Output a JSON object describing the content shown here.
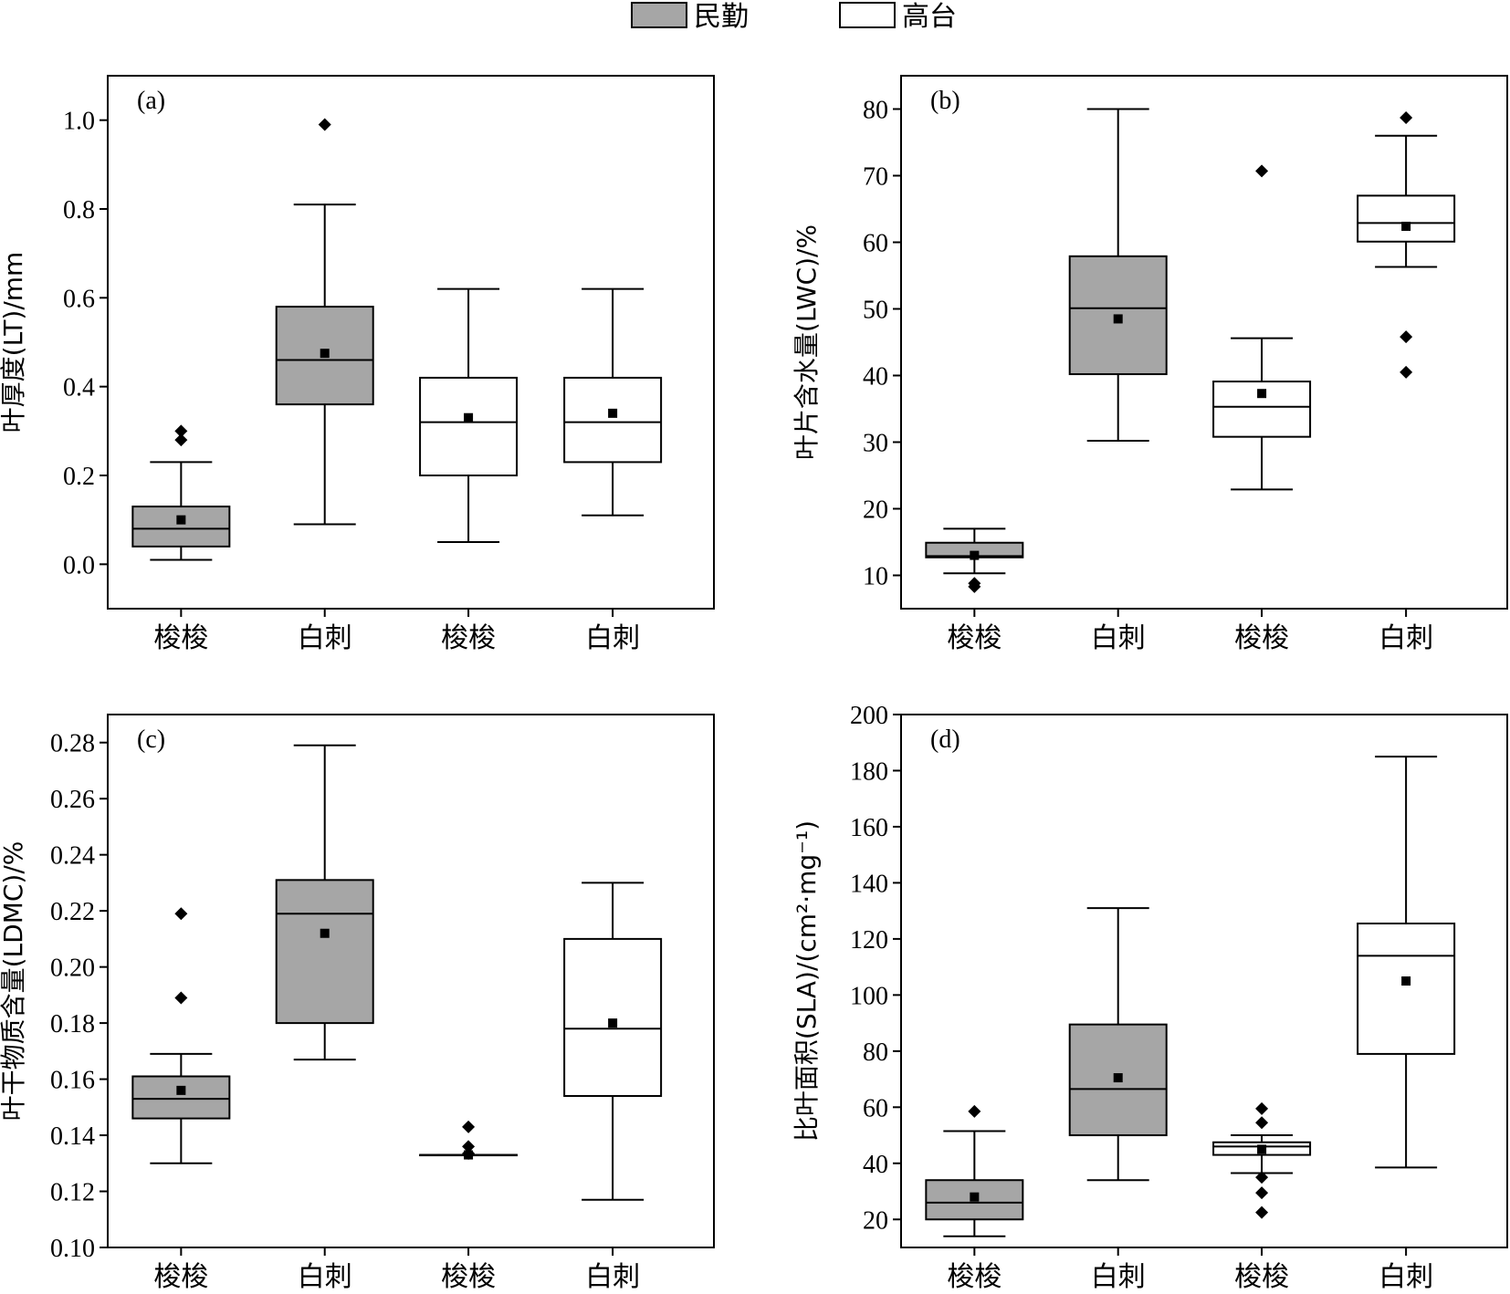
{
  "legend": [
    {
      "label": "民勤",
      "fill": "#a6a6a6"
    },
    {
      "label": "高台",
      "fill": "#ffffff"
    }
  ],
  "colors": {
    "minqin": "#a6a6a6",
    "gaotai": "#ffffff",
    "stroke": "#000000"
  },
  "chart_data": [
    {
      "type": "box",
      "tag": "(a)",
      "ylabel": "叶厚度(LT)/mm",
      "ylim": [
        -0.1,
        1.1
      ],
      "yticks": [
        0.0,
        0.2,
        0.4,
        0.6,
        0.8,
        1.0
      ],
      "tick_labels": [
        "0.0",
        "0.2",
        "0.4",
        "0.6",
        "0.8",
        "1.0"
      ],
      "categories": [
        "梭梭",
        "白刺",
        "梭梭",
        "白刺"
      ],
      "boxes": [
        {
          "site": "民勤",
          "whisker_low": 0.01,
          "q1": 0.04,
          "median": 0.08,
          "q3": 0.13,
          "whisker_high": 0.23,
          "mean": 0.1,
          "outliers": [
            0.28,
            0.3
          ]
        },
        {
          "site": "民勤",
          "whisker_low": 0.09,
          "q1": 0.36,
          "median": 0.46,
          "q3": 0.58,
          "whisker_high": 0.81,
          "mean": 0.475,
          "outliers": [
            0.99
          ]
        },
        {
          "site": "高台",
          "whisker_low": 0.05,
          "q1": 0.2,
          "median": 0.32,
          "q3": 0.42,
          "whisker_high": 0.62,
          "mean": 0.33,
          "outliers": []
        },
        {
          "site": "高台",
          "whisker_low": 0.11,
          "q1": 0.23,
          "median": 0.32,
          "q3": 0.42,
          "whisker_high": 0.62,
          "mean": 0.34,
          "outliers": []
        }
      ]
    },
    {
      "type": "box",
      "tag": "(b)",
      "ylabel": "叶片含水量(LWC)/%",
      "ylim": [
        5,
        85
      ],
      "yticks": [
        10,
        20,
        30,
        40,
        50,
        60,
        70,
        80
      ],
      "tick_labels": [
        "10",
        "20",
        "30",
        "40",
        "50",
        "60",
        "70",
        "80"
      ],
      "categories": [
        "梭梭",
        "白刺",
        "梭梭",
        "白刺"
      ],
      "boxes": [
        {
          "site": "民勤",
          "whisker_low": 10.3,
          "q1": 12.7,
          "median": 12.9,
          "q3": 14.9,
          "whisker_high": 17.0,
          "mean": 13.0,
          "outliers": [
            8.3,
            8.8
          ]
        },
        {
          "site": "民勤",
          "whisker_low": 30.2,
          "q1": 40.2,
          "median": 50.1,
          "q3": 57.9,
          "whisker_high": 80.0,
          "mean": 48.5,
          "outliers": []
        },
        {
          "site": "高台",
          "whisker_low": 22.9,
          "q1": 30.8,
          "median": 35.3,
          "q3": 39.1,
          "whisker_high": 45.6,
          "mean": 37.3,
          "outliers": [
            70.7
          ]
        },
        {
          "site": "高台",
          "whisker_low": 56.3,
          "q1": 60.1,
          "median": 62.9,
          "q3": 67.0,
          "whisker_high": 76.0,
          "mean": 62.4,
          "outliers": [
            40.5,
            45.8,
            78.7
          ]
        }
      ]
    },
    {
      "type": "box",
      "tag": "(c)",
      "ylabel": "叶干物质含量(LDMC)/%",
      "ylim": [
        0.1,
        0.29
      ],
      "yticks": [
        0.1,
        0.12,
        0.14,
        0.16,
        0.18,
        0.2,
        0.22,
        0.24,
        0.26,
        0.28
      ],
      "tick_labels": [
        "0.10",
        "0.12",
        "0.14",
        "0.16",
        "0.18",
        "0.20",
        "0.22",
        "0.24",
        "0.26",
        "0.28"
      ],
      "categories": [
        "梭梭",
        "白刺",
        "梭梭",
        "白刺"
      ],
      "boxes": [
        {
          "site": "民勤",
          "whisker_low": 0.13,
          "q1": 0.146,
          "median": 0.153,
          "q3": 0.161,
          "whisker_high": 0.169,
          "mean": 0.156,
          "outliers": [
            0.189,
            0.219
          ]
        },
        {
          "site": "民勤",
          "whisker_low": 0.167,
          "q1": 0.18,
          "median": 0.219,
          "q3": 0.231,
          "whisker_high": 0.279,
          "mean": 0.212,
          "outliers": []
        },
        {
          "site": "高台",
          "whisker_low": 0.133,
          "q1": 0.133,
          "median": 0.133,
          "q3": 0.133,
          "whisker_high": 0.133,
          "mean": 0.133,
          "outliers": [
            0.1335,
            0.136,
            0.143
          ]
        },
        {
          "site": "高台",
          "whisker_low": 0.117,
          "q1": 0.154,
          "median": 0.178,
          "q3": 0.21,
          "whisker_high": 0.23,
          "mean": 0.18,
          "outliers": []
        }
      ]
    },
    {
      "type": "box",
      "tag": "(d)",
      "ylabel": "比叶面积(SLA)/(cm²·mg⁻¹)",
      "ylim": [
        10,
        200
      ],
      "yticks": [
        20,
        40,
        60,
        80,
        100,
        120,
        140,
        160,
        180,
        200
      ],
      "tick_labels": [
        "20",
        "40",
        "60",
        "80",
        "100",
        "120",
        "140",
        "160",
        "180",
        "200"
      ],
      "categories": [
        "梭梭",
        "白刺",
        "梭梭",
        "白刺"
      ],
      "boxes": [
        {
          "site": "民勤",
          "whisker_low": 14,
          "q1": 20,
          "median": 26,
          "q3": 34,
          "whisker_high": 51.5,
          "mean": 28,
          "outliers": [
            58.5
          ]
        },
        {
          "site": "民勤",
          "whisker_low": 34,
          "q1": 50,
          "median": 66.5,
          "q3": 89.5,
          "whisker_high": 131,
          "mean": 70.5,
          "outliers": []
        },
        {
          "site": "高台",
          "whisker_low": 36.5,
          "q1": 43,
          "median": 46,
          "q3": 47.5,
          "whisker_high": 50,
          "mean": 45,
          "outliers": [
            22.5,
            29.5,
            35,
            54.5,
            59.5
          ]
        },
        {
          "site": "高台",
          "whisker_low": 38.5,
          "q1": 79,
          "median": 114,
          "q3": 125.5,
          "whisker_high": 185,
          "mean": 105,
          "outliers": []
        }
      ]
    }
  ]
}
